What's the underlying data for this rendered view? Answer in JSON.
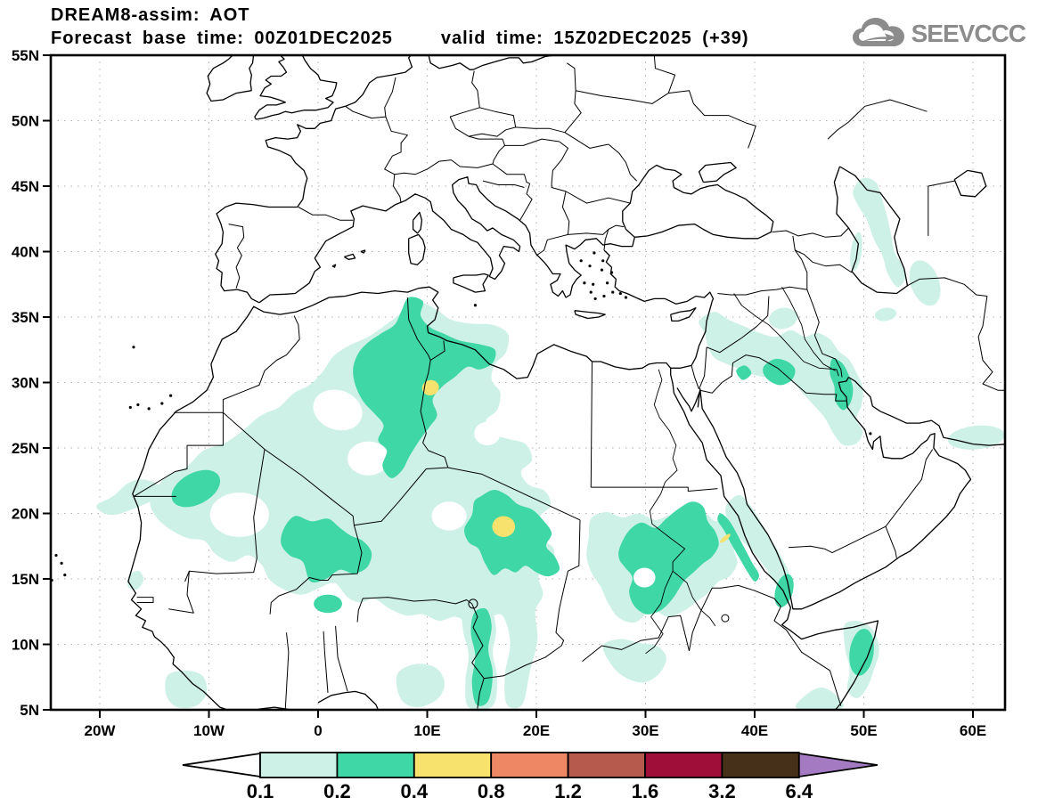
{
  "title": {
    "line1": "DREAM8-assim: AOT",
    "line2_left": "Forecast base time: 00Z01DEC2025",
    "line2_right": "valid time: 15Z02DEC2025 (+39)"
  },
  "logo": {
    "text": "SEEVCCC",
    "color": "#8c8c8c"
  },
  "map": {
    "lat_tick_labels": [
      "55N",
      "50N",
      "45N",
      "40N",
      "35N",
      "30N",
      "25N",
      "20N",
      "15N",
      "10N",
      "5N"
    ],
    "lat_tick_values": [
      55,
      50,
      45,
      40,
      35,
      30,
      25,
      20,
      15,
      10,
      5
    ],
    "lon_tick_labels": [
      "20W",
      "10W",
      "0",
      "10E",
      "20E",
      "30E",
      "40E",
      "50E",
      "60E"
    ],
    "lon_tick_values": [
      -20,
      -10,
      0,
      10,
      20,
      30,
      40,
      50,
      60
    ]
  },
  "legend": {
    "values": [
      "0.1",
      "0.2",
      "0.4",
      "0.8",
      "1.2",
      "1.6",
      "3.2",
      "6.4"
    ],
    "cell_colors": [
      "#cdf1e6",
      "#3fd7a6",
      "#f7e26e",
      "#ee8763",
      "#b55a4d",
      "#9e0e38",
      "#463019"
    ],
    "underflow_color": "#ffffff",
    "overflow_color": "#a47bc2",
    "outline_color": "#000000"
  },
  "chart_data": {
    "type": "contour_map",
    "title": "DREAM8-assim: AOT",
    "variable": "Aerosol Optical Thickness (AOT)",
    "base_time": "00Z01DEC2025",
    "valid_time": "15Z02DEC2025 (+39)",
    "lon_range": [
      "20W",
      "60E"
    ],
    "lat_range": [
      "5N",
      "55N"
    ],
    "grid": "dotted, 10 deg lon x 5 deg lat",
    "contour_levels": [
      0.1,
      0.2,
      0.4,
      0.8,
      1.2,
      1.6,
      3.2,
      6.4
    ],
    "level_colors": [
      "#cdf1e6",
      "#3fd7a6",
      "#f7e26e",
      "#ee8763",
      "#b55a4d",
      "#9e0e38",
      "#463019",
      "#a47bc2"
    ],
    "regions": [
      {
        "level": "0.1-0.2",
        "color": "#cdf1e6",
        "areas": "broad west/central Sahara (Mauritania, Mali, Niger, S Algeria), N Algeria-Tunisia-NW Libya reaching Mediterranean, Chad, Sudan to Red Sea, South Sudan, Senegal coast, Gulf of Guinea patches, Syria-Iraq-Kuwait band, central Caspian Sea, SE of Caspian, Somalia/Horn of Africa coast, Oman coast"
      },
      {
        "level": "0.2-0.4",
        "color": "#3fd7a6",
        "areas": "Algeria-Tunisia-Libya border blob (~3-16E, 23-36N), Mauritania spot (~11W,22N), Mali-Niger (~2W-5E,15-20N), Chad (~13-22E,15-21N), Sudan (~27-37E,12-20N), Red Sea coast strip, W Iraq and Kuwait spots, Somalia spot (~50E,9N), Cameroon-Chad strip (~14-16E,5-12N)"
      },
      {
        "level": "0.4-0.8",
        "color": "#f7e26e",
        "areas": "small maxima near Algeria-Tunisia-Libya border (~10.3E,29.6N), over Chad (~17E,19N), and on Sudan Red Sea coast (~37.3E,18.1N)"
      }
    ],
    "legend_position": "bottom, horizontal color bar with under/overflow arrows"
  }
}
